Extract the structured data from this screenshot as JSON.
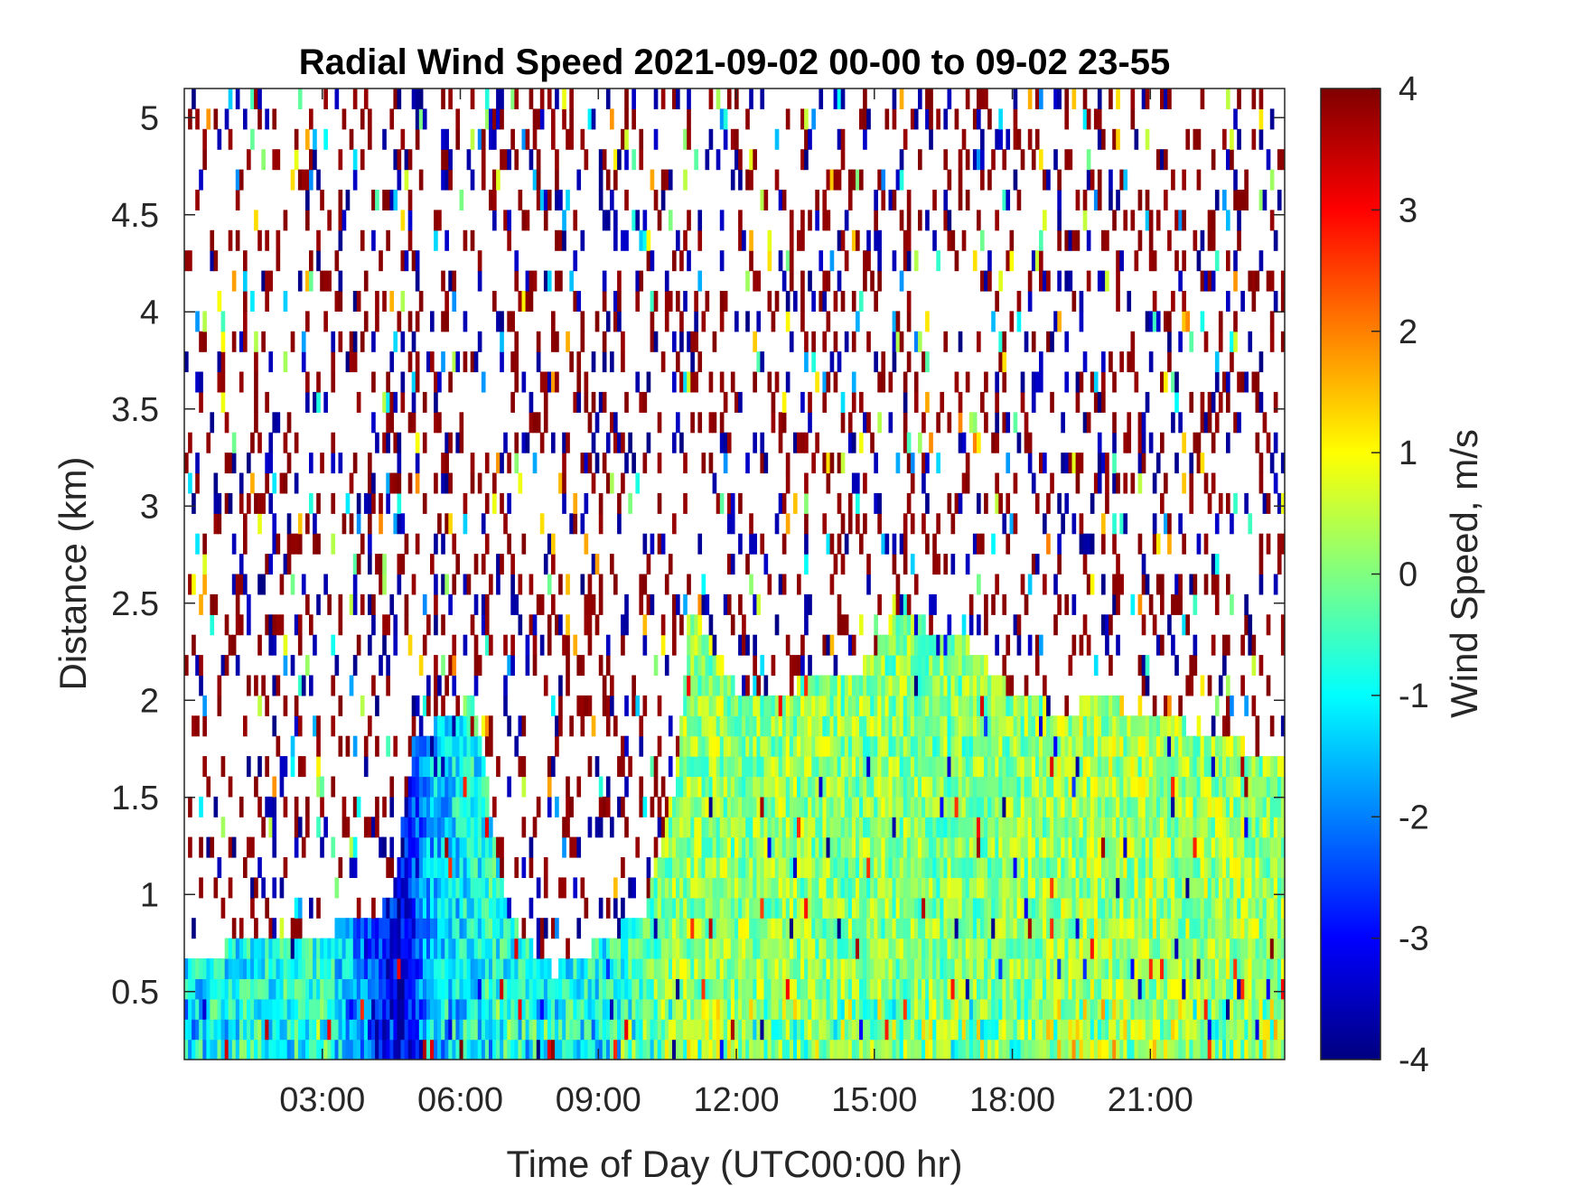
{
  "chart_data": {
    "type": "heatmap",
    "title": "Radial Wind Speed 2021-09-02 00-00 to 09-02 23-55",
    "xlabel": "Time of Day (UTC00:00 hr)",
    "ylabel": "Distance (km)",
    "colorbar_label": "Wind Speed, m/s",
    "colormap": "jet",
    "x_range_hours": [
      0,
      23.92
    ],
    "y_range_km": [
      0.15,
      5.15
    ],
    "clim": [
      -4,
      4
    ],
    "x_ticks": [
      {
        "value": 3,
        "label": "03:00"
      },
      {
        "value": 6,
        "label": "06:00"
      },
      {
        "value": 9,
        "label": "09:00"
      },
      {
        "value": 12,
        "label": "12:00"
      },
      {
        "value": 15,
        "label": "15:00"
      },
      {
        "value": 18,
        "label": "18:00"
      },
      {
        "value": 21,
        "label": "21:00"
      }
    ],
    "y_ticks": [
      {
        "value": 0.5,
        "label": "0.5"
      },
      {
        "value": 1,
        "label": "1"
      },
      {
        "value": 1.5,
        "label": "1.5"
      },
      {
        "value": 2,
        "label": "2"
      },
      {
        "value": 2.5,
        "label": "2.5"
      },
      {
        "value": 3,
        "label": "3"
      },
      {
        "value": 3.5,
        "label": "3.5"
      },
      {
        "value": 4,
        "label": "4"
      },
      {
        "value": 4.5,
        "label": "4.5"
      },
      {
        "value": 5,
        "label": "5"
      }
    ],
    "colorbar_ticks": [
      {
        "value": 4,
        "label": "4"
      },
      {
        "value": 3,
        "label": "3"
      },
      {
        "value": 2,
        "label": "2"
      },
      {
        "value": 1,
        "label": "1"
      },
      {
        "value": 0,
        "label": "0"
      },
      {
        "value": -1,
        "label": "-1"
      },
      {
        "value": -2,
        "label": "-2"
      },
      {
        "value": -3,
        "label": "-3"
      },
      {
        "value": -4,
        "label": "-4"
      }
    ],
    "valid_signal_height_km": [
      {
        "time": 0,
        "height": 0.7
      },
      {
        "time": 2,
        "height": 0.75
      },
      {
        "time": 3,
        "height": 0.8
      },
      {
        "time": 4.5,
        "height": 0.95
      },
      {
        "time": 5,
        "height": 1.8
      },
      {
        "time": 6.3,
        "height": 2.0
      },
      {
        "time": 7,
        "height": 0.9
      },
      {
        "time": 8,
        "height": 0.6
      },
      {
        "time": 10,
        "height": 0.9
      },
      {
        "time": 10.7,
        "height": 1.6
      },
      {
        "time": 11,
        "height": 2.5
      },
      {
        "time": 12,
        "height": 2.05
      },
      {
        "time": 14.5,
        "height": 2.1
      },
      {
        "time": 15.5,
        "height": 2.45
      },
      {
        "time": 17,
        "height": 2.3
      },
      {
        "time": 18,
        "height": 2.05
      },
      {
        "time": 19,
        "height": 1.95
      },
      {
        "time": 20,
        "height": 2.0
      },
      {
        "time": 22,
        "height": 1.85
      },
      {
        "time": 23.9,
        "height": 1.7
      }
    ],
    "mean_speed_ms": [
      {
        "time": 0,
        "speed": -1.2
      },
      {
        "time": 3,
        "speed": -0.6
      },
      {
        "time": 4.7,
        "speed": -3.3
      },
      {
        "time": 5.4,
        "speed": -1.5
      },
      {
        "time": 6.5,
        "speed": -0.8
      },
      {
        "time": 9,
        "speed": -0.9
      },
      {
        "time": 10.7,
        "speed": 0.2
      },
      {
        "time": 14,
        "speed": 0.1
      },
      {
        "time": 17.5,
        "speed": 0.0
      },
      {
        "time": 19.5,
        "speed": 0.3
      },
      {
        "time": 23.9,
        "speed": 0.2
      }
    ]
  }
}
